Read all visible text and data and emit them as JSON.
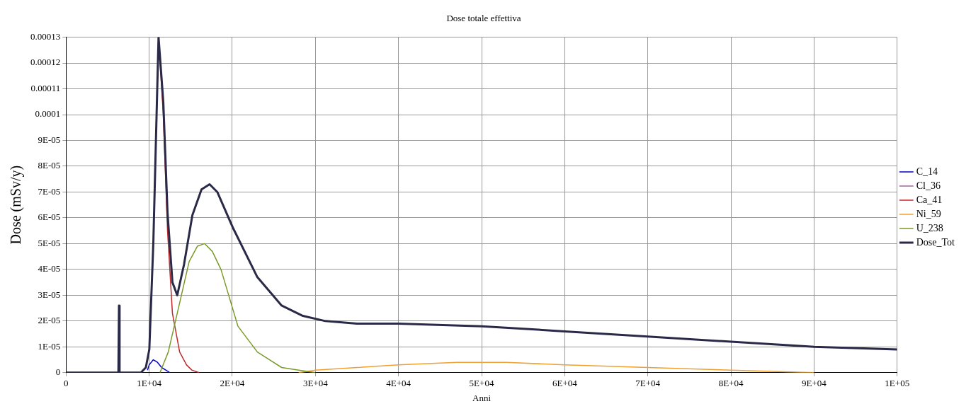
{
  "chart_data": {
    "type": "line",
    "title": "Dose totale effettiva",
    "xlabel": "Anni",
    "ylabel": "Dose (mSv/y)",
    "xlim": [
      0,
      100000
    ],
    "xticks": [
      0,
      {
        "value": 10000,
        "label": "1E+04"
      },
      {
        "value": 20000,
        "label": "2E+04"
      },
      {
        "value": 30000,
        "label": "3E+04"
      },
      {
        "value": 40000,
        "label": "4E+04"
      },
      {
        "value": 50000,
        "label": "5E+04"
      },
      {
        "value": 60000,
        "label": "6E+04"
      },
      {
        "value": 70000,
        "label": "7E+04"
      },
      {
        "value": 80000,
        "label": "8E+04"
      },
      {
        "value": 90000,
        "label": "9E+04"
      },
      {
        "value": 100000,
        "label": "1E+05"
      }
    ],
    "ylim": [
      0,
      0.00013
    ],
    "yticks": [
      0,
      {
        "value": 1e-05,
        "label": "1E-05"
      },
      {
        "value": 2e-05,
        "label": "2E-05"
      },
      {
        "value": 3e-05,
        "label": "3E-05"
      },
      {
        "value": 4e-05,
        "label": "4E-05"
      },
      {
        "value": 5e-05,
        "label": "5E-05"
      },
      {
        "value": 6e-05,
        "label": "6E-05"
      },
      {
        "value": 7e-05,
        "label": "7E-05"
      },
      {
        "value": 8e-05,
        "label": "8E-05"
      },
      {
        "value": 9e-05,
        "label": "9E-05"
      },
      {
        "value": 0.0001,
        "label": "0.0001"
      },
      {
        "value": 0.00011,
        "label": "0.00011"
      },
      {
        "value": 0.00012,
        "label": "0.00012"
      },
      {
        "value": 0.00013,
        "label": "0.00013"
      }
    ],
    "grid": true,
    "legend": "right",
    "marker": "none",
    "line_style": "solid",
    "series": [
      {
        "name": "C_14",
        "color": "#0000cc",
        "x": [
          9800,
          10000,
          10500,
          11000,
          11500,
          12000,
          12500
        ],
        "values": [
          1e-06,
          3e-06,
          5e-06,
          4e-06,
          2e-06,
          1e-06,
          0
        ]
      },
      {
        "name": "Cl_36",
        "color": "#a060a0"
      },
      {
        "name": "Ca_41",
        "color": "#c0282a",
        "x": [
          11130,
          11700,
          12210,
          12800,
          13670,
          14500,
          15140,
          16000
        ],
        "values": [
          0.00013,
          0.0001,
          5.5e-05,
          2.3e-05,
          8e-06,
          3e-06,
          1e-06,
          0
        ]
      },
      {
        "name": "Ni_59",
        "color": "#f0a030",
        "x": [
          28000,
          30000,
          35000,
          40000,
          47000,
          53000,
          60000,
          70000,
          80000,
          90000
        ],
        "values": [
          0,
          1e-06,
          2e-06,
          3e-06,
          4e-06,
          4e-06,
          3e-06,
          2e-06,
          1e-06,
          0
        ]
      },
      {
        "name": "U_238",
        "color": "#7a9a28",
        "x": [
          11300,
          12300,
          13380,
          14810,
          15800,
          16680,
          17600,
          18640,
          20680,
          23020,
          25940,
          28000,
          30000
        ],
        "values": [
          0,
          8e-06,
          2.3e-05,
          4.3e-05,
          4.9e-05,
          5e-05,
          4.7e-05,
          4e-05,
          1.8e-05,
          8e-06,
          2e-06,
          1e-06,
          0
        ]
      },
      {
        "name": "Dose_Tot",
        "color": "#2a2a48",
        "x": [
          0,
          6300,
          6370,
          6440,
          9000,
          9600,
          10020,
          10500,
          11130,
          11700,
          12210,
          12800,
          13380,
          14200,
          15200,
          16300,
          17270,
          18200,
          20100,
          23020,
          25940,
          28500,
          31200,
          35000,
          40000,
          50000,
          60000,
          70000,
          80000,
          90000,
          100000
        ],
        "values": [
          0,
          0,
          2.6e-05,
          0,
          0,
          2e-06,
          9e-06,
          5e-05,
          0.00013,
          0.000105,
          6.2e-05,
          3.5e-05,
          3e-05,
          4.2e-05,
          6.1e-05,
          7.1e-05,
          7.3e-05,
          7e-05,
          5.6e-05,
          3.7e-05,
          2.6e-05,
          2.2e-05,
          2e-05,
          1.9e-05,
          1.9e-05,
          1.8e-05,
          1.6e-05,
          1.4e-05,
          1.2e-05,
          1e-05,
          9e-06
        ]
      }
    ]
  }
}
